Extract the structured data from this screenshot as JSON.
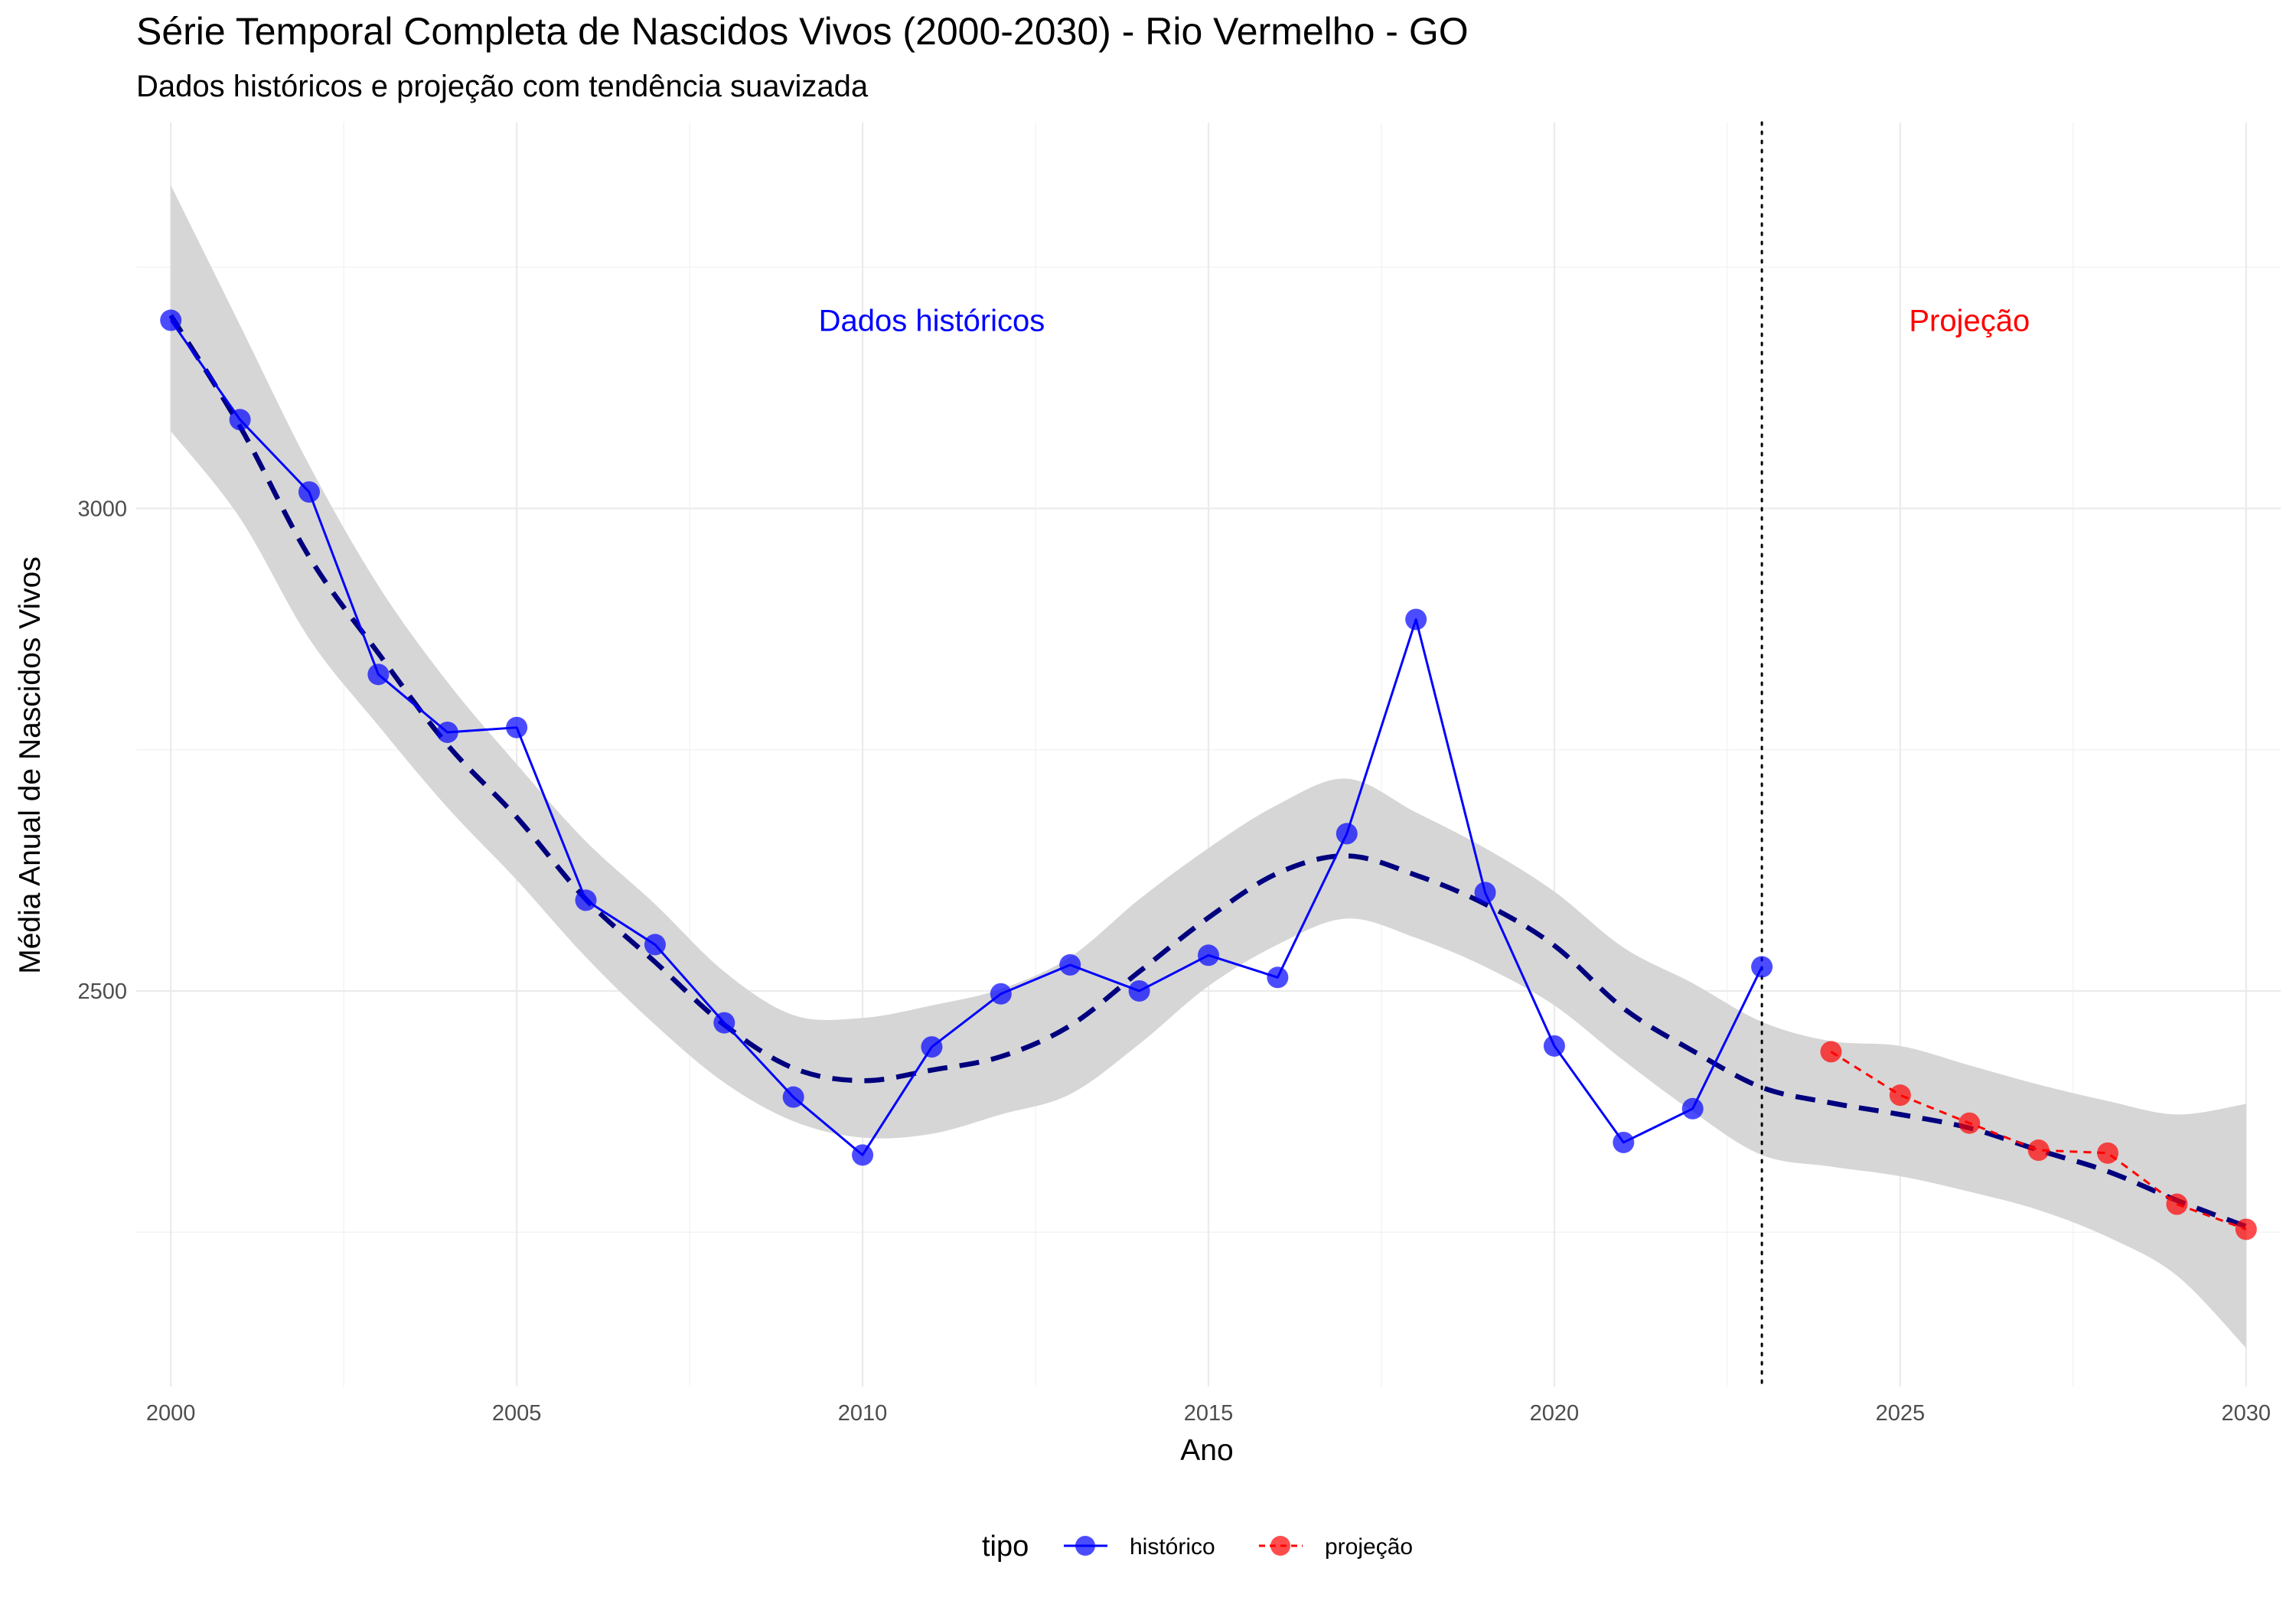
{
  "chart_data": {
    "type": "line",
    "title": "Série Temporal Completa de Nascidos Vivos (2000-2030) -  Rio Vermelho - GO",
    "subtitle": "Dados históricos e projeção com tendência suavizada",
    "xlabel": "Ano",
    "ylabel": "Média Anual de Nascidos Vivos",
    "xlim": [
      1999.5,
      2030.5
    ],
    "ylim": [
      2090,
      3400
    ],
    "x_ticks": [
      2000,
      2005,
      2010,
      2015,
      2020,
      2025,
      2030
    ],
    "y_ticks": [
      2500,
      3000
    ],
    "y_minor": [
      2250,
      2750,
      3250
    ],
    "grid": true,
    "cutoff_year": 2023,
    "region_labels": [
      {
        "text": "Dados históricos",
        "x": 2011,
        "y": 3195,
        "color": "#0000ff"
      },
      {
        "text": "Projeção",
        "x": 2026,
        "y": 3195,
        "color": "#ff0000"
      }
    ],
    "legend": {
      "title": "tipo",
      "position": "bottom"
    },
    "series": [
      {
        "name": "histórico",
        "color": "#0000ff",
        "line": "solid",
        "x": [
          2000,
          2001,
          2002,
          2003,
          2004,
          2005,
          2006,
          2007,
          2008,
          2009,
          2010,
          2011,
          2012,
          2013,
          2014,
          2015,
          2016,
          2017,
          2018,
          2019,
          2020,
          2021,
          2022,
          2023
        ],
        "y": [
          3195,
          3092,
          3017,
          2828,
          2768,
          2773,
          2594,
          2548,
          2467,
          2390,
          2330,
          2442,
          2497,
          2527,
          2500,
          2537,
          2514,
          2663,
          2885,
          2602,
          2443,
          2343,
          2378,
          2525
        ]
      },
      {
        "name": "projeção",
        "color": "#ff0000",
        "line": "dashed",
        "x": [
          2024,
          2025,
          2026,
          2027,
          2028,
          2029,
          2030
        ],
        "y": [
          2437,
          2392,
          2363,
          2335,
          2332,
          2279,
          2253
        ]
      }
    ],
    "trend": {
      "color": "#00007f",
      "x": [
        2000,
        2001,
        2002,
        2003,
        2004,
        2005,
        2006,
        2007,
        2008,
        2009,
        2010,
        2011,
        2012,
        2013,
        2014,
        2015,
        2016,
        2017,
        2018,
        2019,
        2020,
        2021,
        2022,
        2023,
        2024,
        2025,
        2026,
        2027,
        2028,
        2029,
        2030
      ],
      "y": [
        3200,
        3085,
        2950,
        2850,
        2755,
        2680,
        2595,
        2530,
        2465,
        2420,
        2407,
        2418,
        2432,
        2464,
        2520,
        2576,
        2622,
        2640,
        2620,
        2590,
        2547,
        2482,
        2438,
        2400,
        2384,
        2372,
        2358,
        2335,
        2313,
        2283,
        2256
      ],
      "upper": [
        3335,
        3190,
        3045,
        2920,
        2820,
        2735,
        2655,
        2590,
        2520,
        2475,
        2472,
        2485,
        2502,
        2535,
        2595,
        2648,
        2693,
        2720,
        2685,
        2648,
        2603,
        2545,
        2508,
        2468,
        2448,
        2443,
        2423,
        2403,
        2386,
        2372,
        2383
      ],
      "lower": [
        3080,
        2990,
        2865,
        2775,
        2690,
        2615,
        2535,
        2465,
        2405,
        2365,
        2348,
        2352,
        2372,
        2393,
        2445,
        2505,
        2548,
        2575,
        2555,
        2525,
        2485,
        2428,
        2375,
        2330,
        2318,
        2308,
        2292,
        2273,
        2245,
        2205,
        2130
      ]
    }
  }
}
